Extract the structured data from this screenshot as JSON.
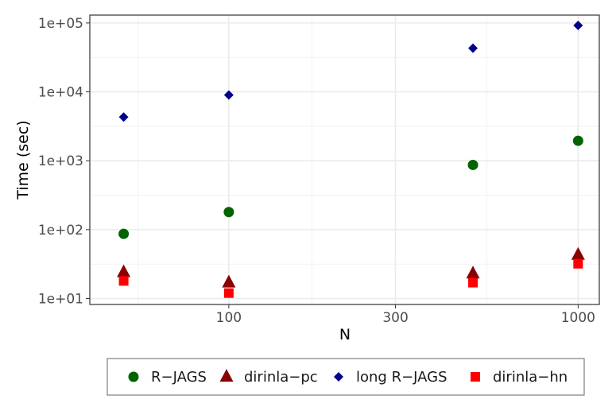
{
  "chart_data": {
    "type": "scatter",
    "xlabel": "N",
    "ylabel": "Time (sec)",
    "x_scale": "log",
    "y_scale": "log",
    "xlim": [
      40,
      1150
    ],
    "ylim": [
      8.2,
      130000
    ],
    "x_ticks": [
      {
        "value": 100,
        "label": "100"
      },
      {
        "value": 300,
        "label": "300"
      },
      {
        "value": 1000,
        "label": "1000"
      }
    ],
    "x_minor_gridlines": [
      55,
      173,
      548
    ],
    "y_ticks": [
      {
        "value": 10,
        "label": "1e+01"
      },
      {
        "value": 100,
        "label": "1e+02"
      },
      {
        "value": 1000,
        "label": "1e+03"
      },
      {
        "value": 10000,
        "label": "1e+04"
      },
      {
        "value": 100000,
        "label": "1e+05"
      }
    ],
    "grid": true,
    "legend_position": "bottom",
    "series": [
      {
        "name": "R−JAGS",
        "marker": "circle",
        "color": "#006400",
        "points": [
          {
            "x": 50,
            "y": 87
          },
          {
            "x": 100,
            "y": 180
          },
          {
            "x": 500,
            "y": 870
          },
          {
            "x": 1000,
            "y": 1950
          }
        ]
      },
      {
        "name": "dirinla−pc",
        "marker": "triangle",
        "color": "#8b0000",
        "points": [
          {
            "x": 50,
            "y": 24
          },
          {
            "x": 100,
            "y": 17
          },
          {
            "x": 500,
            "y": 23
          },
          {
            "x": 1000,
            "y": 43
          }
        ]
      },
      {
        "name": "long R−JAGS",
        "marker": "diamond",
        "color": "#00008b",
        "points": [
          {
            "x": 50,
            "y": 4300
          },
          {
            "x": 100,
            "y": 9000
          },
          {
            "x": 500,
            "y": 43000
          },
          {
            "x": 1000,
            "y": 92000
          }
        ]
      },
      {
        "name": "dirinla−hn",
        "marker": "square",
        "color": "#ff0000",
        "points": [
          {
            "x": 50,
            "y": 18
          },
          {
            "x": 100,
            "y": 12
          },
          {
            "x": 500,
            "y": 17
          },
          {
            "x": 1000,
            "y": 32
          }
        ]
      }
    ]
  }
}
